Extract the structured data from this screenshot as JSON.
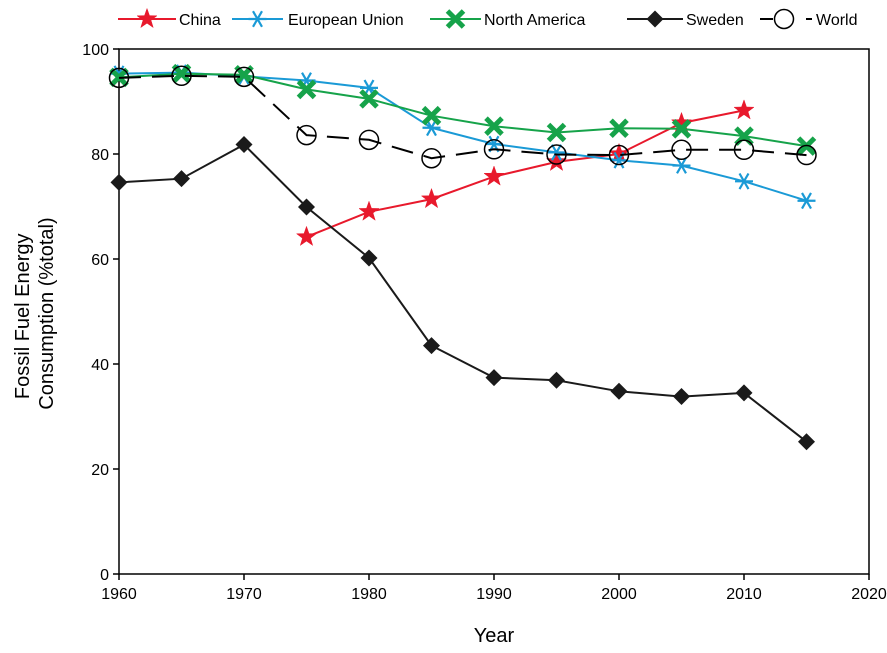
{
  "chart_data": {
    "type": "line",
    "title": "",
    "xlabel": "Year",
    "ylabel_line1": "Fossil Fuel Energy",
    "ylabel_line2": "Consumption (%total)",
    "xlim": [
      1960,
      2020
    ],
    "ylim": [
      0,
      100
    ],
    "x_ticks": [
      1960,
      1970,
      1980,
      1990,
      2000,
      2010,
      2020
    ],
    "y_ticks": [
      0,
      20,
      40,
      60,
      80,
      100
    ],
    "grid": false,
    "legend_position": "top",
    "series": [
      {
        "name": "China",
        "color": "#e8192c",
        "marker": "star",
        "dashed": false,
        "x": [
          1975,
          1980,
          1985,
          1990,
          1995,
          2000,
          2005,
          2010
        ],
        "y": [
          64.2,
          69.0,
          71.4,
          75.7,
          78.5,
          80.0,
          85.9,
          88.3
        ]
      },
      {
        "name": "European Union",
        "color": "#1a9ad6",
        "marker": "asterisk",
        "dashed": false,
        "x": [
          1960,
          1965,
          1970,
          1975,
          1980,
          1985,
          1990,
          1995,
          2000,
          2005,
          2010,
          2015
        ],
        "y": [
          95.3,
          95.5,
          94.8,
          94.0,
          92.6,
          85.0,
          81.9,
          80.3,
          78.8,
          77.8,
          74.8,
          71.1
        ]
      },
      {
        "name": "North America",
        "color": "#16a34a",
        "marker": "x",
        "dashed": false,
        "x": [
          1960,
          1965,
          1970,
          1975,
          1980,
          1985,
          1990,
          1995,
          2000,
          2005,
          2010,
          2015
        ],
        "y": [
          94.6,
          95.3,
          95.1,
          92.3,
          90.5,
          87.3,
          85.3,
          84.1,
          84.9,
          84.8,
          83.4,
          81.5
        ]
      },
      {
        "name": "Sweden",
        "color": "#1a1a1a",
        "marker": "diamond",
        "dashed": false,
        "x": [
          1960,
          1965,
          1970,
          1975,
          1980,
          1985,
          1990,
          1995,
          2000,
          2005,
          2010,
          2015
        ],
        "y": [
          74.6,
          75.3,
          81.8,
          69.9,
          60.2,
          43.5,
          37.4,
          36.9,
          34.8,
          33.8,
          34.5,
          25.2
        ]
      },
      {
        "name": "World",
        "color": "#000000",
        "marker": "circle-open",
        "dashed": true,
        "x": [
          1960,
          1965,
          1970,
          1975,
          1980,
          1985,
          1990,
          1995,
          2000,
          2005,
          2010,
          2015
        ],
        "y": [
          94.5,
          94.9,
          94.7,
          83.6,
          82.7,
          79.2,
          80.9,
          79.9,
          79.8,
          80.8,
          80.8,
          79.8
        ]
      }
    ]
  }
}
